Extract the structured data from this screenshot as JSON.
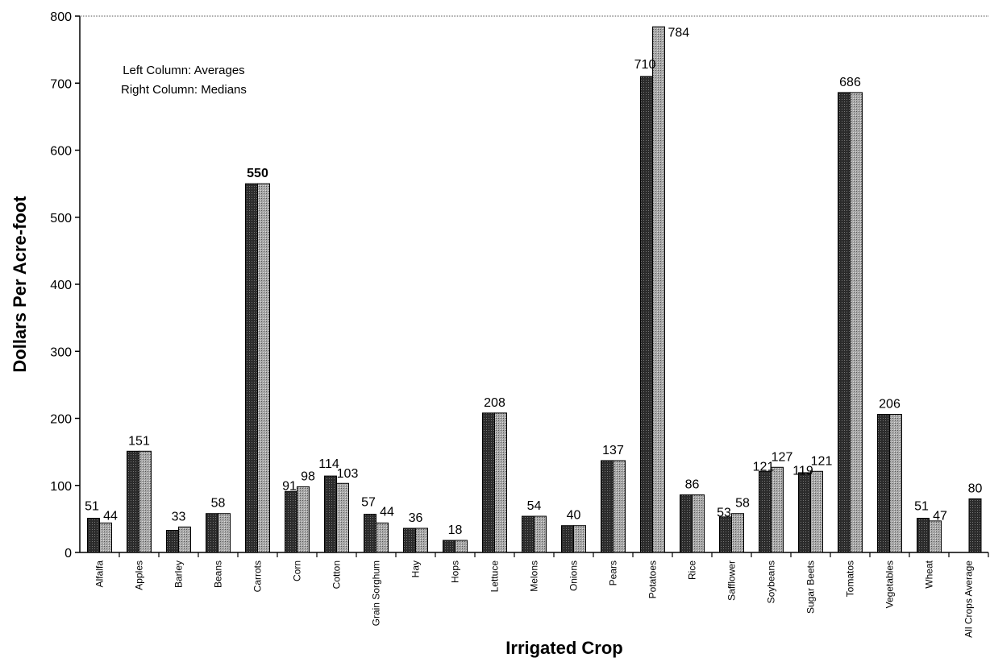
{
  "chart_data": {
    "type": "bar",
    "title": "",
    "xlabel": "Irrigated Crop",
    "ylabel": "Dollars Per Acre-foot",
    "ylim": [
      0,
      800
    ],
    "yticks": [
      "0",
      "100",
      "200",
      "300",
      "400",
      "500",
      "600",
      "700",
      "800"
    ],
    "annotation": [
      "Left Column: Averages",
      "Right Column: Medians"
    ],
    "colors": {
      "average": "#2b2b2b",
      "median": "#a8a8a8"
    },
    "categories": [
      "Alfalfa",
      "Apples",
      "Barley",
      "Beans",
      "Carrots",
      "Corn",
      "Cotton",
      "Grain Sorghum",
      "Hay",
      "Hops",
      "Lettuce",
      "Melons",
      "Onions",
      "Pears",
      "Potatoes",
      "Rice",
      "Safflower",
      "Soybeans",
      "Sugar Beets",
      "Tomatos",
      "Vegetables",
      "Wheat",
      "All Crops Average"
    ],
    "series": [
      {
        "values": [
          51,
          151,
          33,
          58,
          550,
          91,
          114,
          57,
          36,
          18,
          208,
          54,
          40,
          137,
          710,
          86,
          53,
          121,
          119,
          686,
          206,
          51,
          80
        ]
      },
      {
        "values": [
          44,
          151,
          38,
          58,
          550,
          98,
          103,
          44,
          36,
          18,
          208,
          54,
          40,
          137,
          784,
          86,
          58,
          127,
          121,
          686,
          206,
          47,
          null
        ]
      }
    ],
    "data_labels": [
      [
        "51",
        "44"
      ],
      [
        "151"
      ],
      [
        "33"
      ],
      [
        "58"
      ],
      [
        "550"
      ],
      [
        "91",
        "98"
      ],
      [
        "114",
        "103"
      ],
      [
        "57",
        "44"
      ],
      [
        "36"
      ],
      [
        "18"
      ],
      [
        "208"
      ],
      [
        "54"
      ],
      [
        "40"
      ],
      [
        "137"
      ],
      [
        "710",
        "784"
      ],
      [
        "86"
      ],
      [
        "53",
        "58"
      ],
      [
        "121",
        "127"
      ],
      [
        "119",
        "121"
      ],
      [
        "686"
      ],
      [
        "206"
      ],
      [
        "51",
        "47"
      ],
      [
        "80"
      ]
    ]
  }
}
